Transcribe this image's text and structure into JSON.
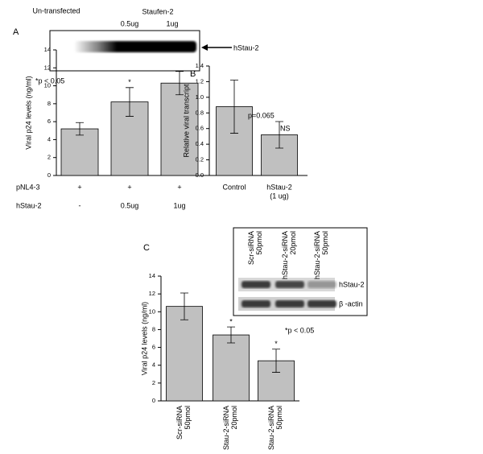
{
  "chart_data": [
    {
      "type": "bar",
      "panel": "A",
      "ylabel": "Viral p24 levels (ng/ml)",
      "color": "#c0c0c0",
      "values": [
        5.2,
        8.2,
        10.3
      ],
      "errors": [
        0.7,
        1.6,
        1.3
      ],
      "ylim": [
        0,
        14
      ],
      "yticks": [
        0,
        2,
        4,
        6,
        8,
        10,
        12,
        14
      ],
      "rows": [
        {
          "label": "pNL4-3",
          "cells": [
            "+",
            "+",
            "+"
          ]
        },
        {
          "label": "hStau-2",
          "cells": [
            "-",
            "0.5ug",
            "1ug"
          ]
        }
      ],
      "annotations": [
        "*p <  0.05",
        "*"
      ],
      "blot": {
        "labels": [
          "Un-transfected",
          "Staufen-2",
          "0.5ug",
          "1ug"
        ],
        "band": "hStau-2"
      }
    },
    {
      "type": "bar",
      "panel": "B",
      "ylabel": "Relative viral transcript",
      "color": "#c0c0c0",
      "categories": [
        [
          "Control"
        ],
        [
          "hStau-2",
          "(1 ug)"
        ]
      ],
      "values": [
        0.88,
        0.52
      ],
      "errors": [
        0.34,
        0.17
      ],
      "ylim": [
        0,
        1.4
      ],
      "yticks": [
        {
          "value": 0,
          "label": "0.0"
        },
        0.2,
        0.4,
        0.6,
        0.8,
        {
          "value": 1,
          "label": "1.0"
        },
        1.2,
        1.4
      ],
      "annotations": [
        "p=0.065",
        "NS"
      ]
    },
    {
      "type": "bar",
      "panel": "C",
      "ylabel": "Viral p24 levels (ng/ml)",
      "color": "#c0c0c0",
      "categories": [
        [
          "Scr-siRNA",
          "50pmol"
        ],
        [
          "hStau-2-siRNA",
          "20pmol"
        ],
        [
          "hStau-2-siRNA",
          "50pmol"
        ]
      ],
      "values": [
        10.6,
        7.4,
        4.5
      ],
      "errors": [
        1.5,
        0.9,
        1.3
      ],
      "ylim": [
        0,
        14
      ],
      "yticks": [
        0,
        2,
        4,
        6,
        8,
        10,
        12,
        14
      ],
      "annotations": [
        "*",
        "*p < 0.05",
        "*"
      ],
      "blot": {
        "lanes": [
          [
            "Scr-siRNA",
            "50pmol"
          ],
          [
            "hStau-2-siRNA",
            "20pmol"
          ],
          [
            "hStau-2-siRNA",
            "50pmol"
          ]
        ],
        "rows": [
          "hStau-2",
          "β -actin"
        ]
      }
    }
  ]
}
